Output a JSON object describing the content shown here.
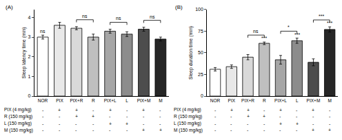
{
  "chart_data": [
    {
      "type": "bar",
      "title": "(A)",
      "y_label": "Sleep latency time (min)",
      "categories": [
        "NOR",
        "PIX",
        "PIX+R",
        "R",
        "PIX+L",
        "L",
        "PIX+M",
        "M"
      ],
      "values": [
        3.0,
        3.6,
        3.45,
        3.0,
        3.3,
        3.15,
        3.4,
        2.9
      ],
      "errors": [
        0.1,
        0.15,
        0.08,
        0.15,
        0.1,
        0.12,
        0.1,
        0.1
      ],
      "colors": [
        "#ffffff",
        "#e8e8e8",
        "#d9d9d9",
        "#bfbfbf",
        "#a6a6a6",
        "#8c8c8c",
        "#4d4d4d",
        "#262626"
      ],
      "ylim": [
        0,
        4.4
      ],
      "yticks": [
        0,
        1,
        2,
        3,
        4
      ],
      "grid": false,
      "annotations": [
        {
          "category": "NOR",
          "text": "ns"
        }
      ],
      "comparisons": [
        {
          "from": "PIX+R",
          "to": "R",
          "text": "ns"
        },
        {
          "from": "PIX+L",
          "to": "L",
          "text": "ns"
        },
        {
          "from": "PIX+M",
          "to": "M",
          "text": "ns"
        }
      ],
      "treatment_table": [
        {
          "label": "PIX (4 mg/kg)",
          "marks": [
            "-",
            "+",
            "+",
            "-",
            "+",
            "-",
            "+",
            "-"
          ]
        },
        {
          "label": "R (150 mg/kg)",
          "marks": [
            "-",
            "-",
            "+",
            "+",
            "-",
            "-",
            "-",
            "-"
          ]
        },
        {
          "label": "L (150 mg/kg)",
          "marks": [
            "-",
            "-",
            "-",
            "-",
            "+",
            "+",
            "-",
            "-"
          ]
        },
        {
          "label": "M (150 mg/kg)",
          "marks": [
            "-",
            "-",
            "-",
            "-",
            "-",
            "-",
            "+",
            "+"
          ]
        }
      ]
    },
    {
      "type": "bar",
      "title": "(B)",
      "y_label": "Sleep duration time (min)",
      "categories": [
        "NOR",
        "PIX",
        "PIX+R",
        "R",
        "PIX+L",
        "L",
        "PIX+M",
        "M"
      ],
      "values": [
        31,
        34,
        45,
        61,
        42,
        64,
        39,
        77
      ],
      "errors": [
        2,
        2,
        3,
        1.5,
        5,
        3,
        4,
        3
      ],
      "colors": [
        "#ffffff",
        "#e8e8e8",
        "#d9d9d9",
        "#bfbfbf",
        "#a6a6a6",
        "#8c8c8c",
        "#4d4d4d",
        "#262626"
      ],
      "ylim": [
        0,
        100
      ],
      "yticks": [
        0,
        25,
        50,
        75,
        100
      ],
      "grid": false,
      "annotations": [
        {
          "category": "R",
          "text": "***"
        },
        {
          "category": "L",
          "text": "***"
        },
        {
          "category": "M",
          "text": "***"
        }
      ],
      "comparisons": [
        {
          "from": "PIX+R",
          "to": "R",
          "text": "ns"
        },
        {
          "from": "PIX+L",
          "to": "L",
          "text": "*"
        },
        {
          "from": "PIX+M",
          "to": "M",
          "text": "***"
        }
      ],
      "treatment_table": [
        {
          "label": "PIX (4 mg/kg)",
          "marks": [
            "-",
            "+",
            "+",
            "-",
            "+",
            "-",
            "+",
            "-"
          ]
        },
        {
          "label": "R (150 mg/kg)",
          "marks": [
            "-",
            "-",
            "+",
            "+",
            "-",
            "-",
            "-",
            "-"
          ]
        },
        {
          "label": "L (150 mg/kg)",
          "marks": [
            "-",
            "-",
            "-",
            "-",
            "+",
            "+",
            "-",
            "-"
          ]
        },
        {
          "label": "M (150 mg/kg)",
          "marks": [
            "-",
            "-",
            "-",
            "-",
            "-",
            "-",
            "+",
            "+"
          ]
        }
      ]
    }
  ]
}
